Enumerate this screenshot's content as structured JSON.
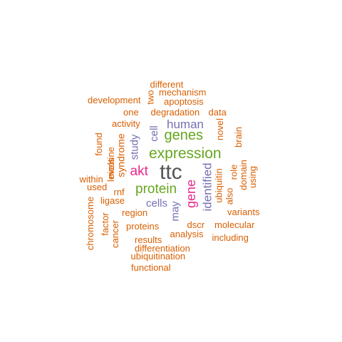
{
  "cloud": {
    "colors": {
      "orange": "#d95f02",
      "purple": "#7570b3",
      "magenta": "#e7298a",
      "green": "#66a61e",
      "dark": "#555555"
    },
    "words": [
      {
        "text": "ttc",
        "color": "dark"
      },
      {
        "text": "expression",
        "color": "green"
      },
      {
        "text": "genes",
        "color": "green"
      },
      {
        "text": "protein",
        "color": "green"
      },
      {
        "text": "akt",
        "color": "magenta"
      },
      {
        "text": "gene",
        "color": "magenta"
      },
      {
        "text": "human",
        "color": "purple"
      },
      {
        "text": "cell",
        "color": "purple"
      },
      {
        "text": "study",
        "color": "purple"
      },
      {
        "text": "cells",
        "color": "purple"
      },
      {
        "text": "may",
        "color": "purple"
      },
      {
        "text": "identified",
        "color": "purple"
      },
      {
        "text": "different",
        "color": "orange"
      },
      {
        "text": "two",
        "color": "orange"
      },
      {
        "text": "mechanism",
        "color": "orange"
      },
      {
        "text": "development",
        "color": "orange"
      },
      {
        "text": "apoptosis",
        "color": "orange"
      },
      {
        "text": "one",
        "color": "orange"
      },
      {
        "text": "degradation",
        "color": "orange"
      },
      {
        "text": "data",
        "color": "orange"
      },
      {
        "text": "activity",
        "color": "orange"
      },
      {
        "text": "novel",
        "color": "orange"
      },
      {
        "text": "brain",
        "color": "orange"
      },
      {
        "text": "found",
        "color": "orange"
      },
      {
        "text": "nicotine",
        "color": "orange"
      },
      {
        "text": "syndrome",
        "color": "orange"
      },
      {
        "text": "levels",
        "color": "orange"
      },
      {
        "text": "within",
        "color": "orange"
      },
      {
        "text": "used",
        "color": "orange"
      },
      {
        "text": "rnf",
        "color": "orange"
      },
      {
        "text": "ligase",
        "color": "orange"
      },
      {
        "text": "role",
        "color": "orange"
      },
      {
        "text": "domain",
        "color": "orange"
      },
      {
        "text": "using",
        "color": "orange"
      },
      {
        "text": "ubiquitin",
        "color": "orange"
      },
      {
        "text": "also",
        "color": "orange"
      },
      {
        "text": "region",
        "color": "orange"
      },
      {
        "text": "variants",
        "color": "orange"
      },
      {
        "text": "chromosome",
        "color": "orange"
      },
      {
        "text": "factor",
        "color": "orange"
      },
      {
        "text": "cancer",
        "color": "orange"
      },
      {
        "text": "proteins",
        "color": "orange"
      },
      {
        "text": "dscr",
        "color": "orange"
      },
      {
        "text": "molecular",
        "color": "orange"
      },
      {
        "text": "analysis",
        "color": "orange"
      },
      {
        "text": "including",
        "color": "orange"
      },
      {
        "text": "results",
        "color": "orange"
      },
      {
        "text": "differentiation",
        "color": "orange"
      },
      {
        "text": "ubiquitination",
        "color": "orange"
      },
      {
        "text": "functional",
        "color": "orange"
      }
    ]
  }
}
